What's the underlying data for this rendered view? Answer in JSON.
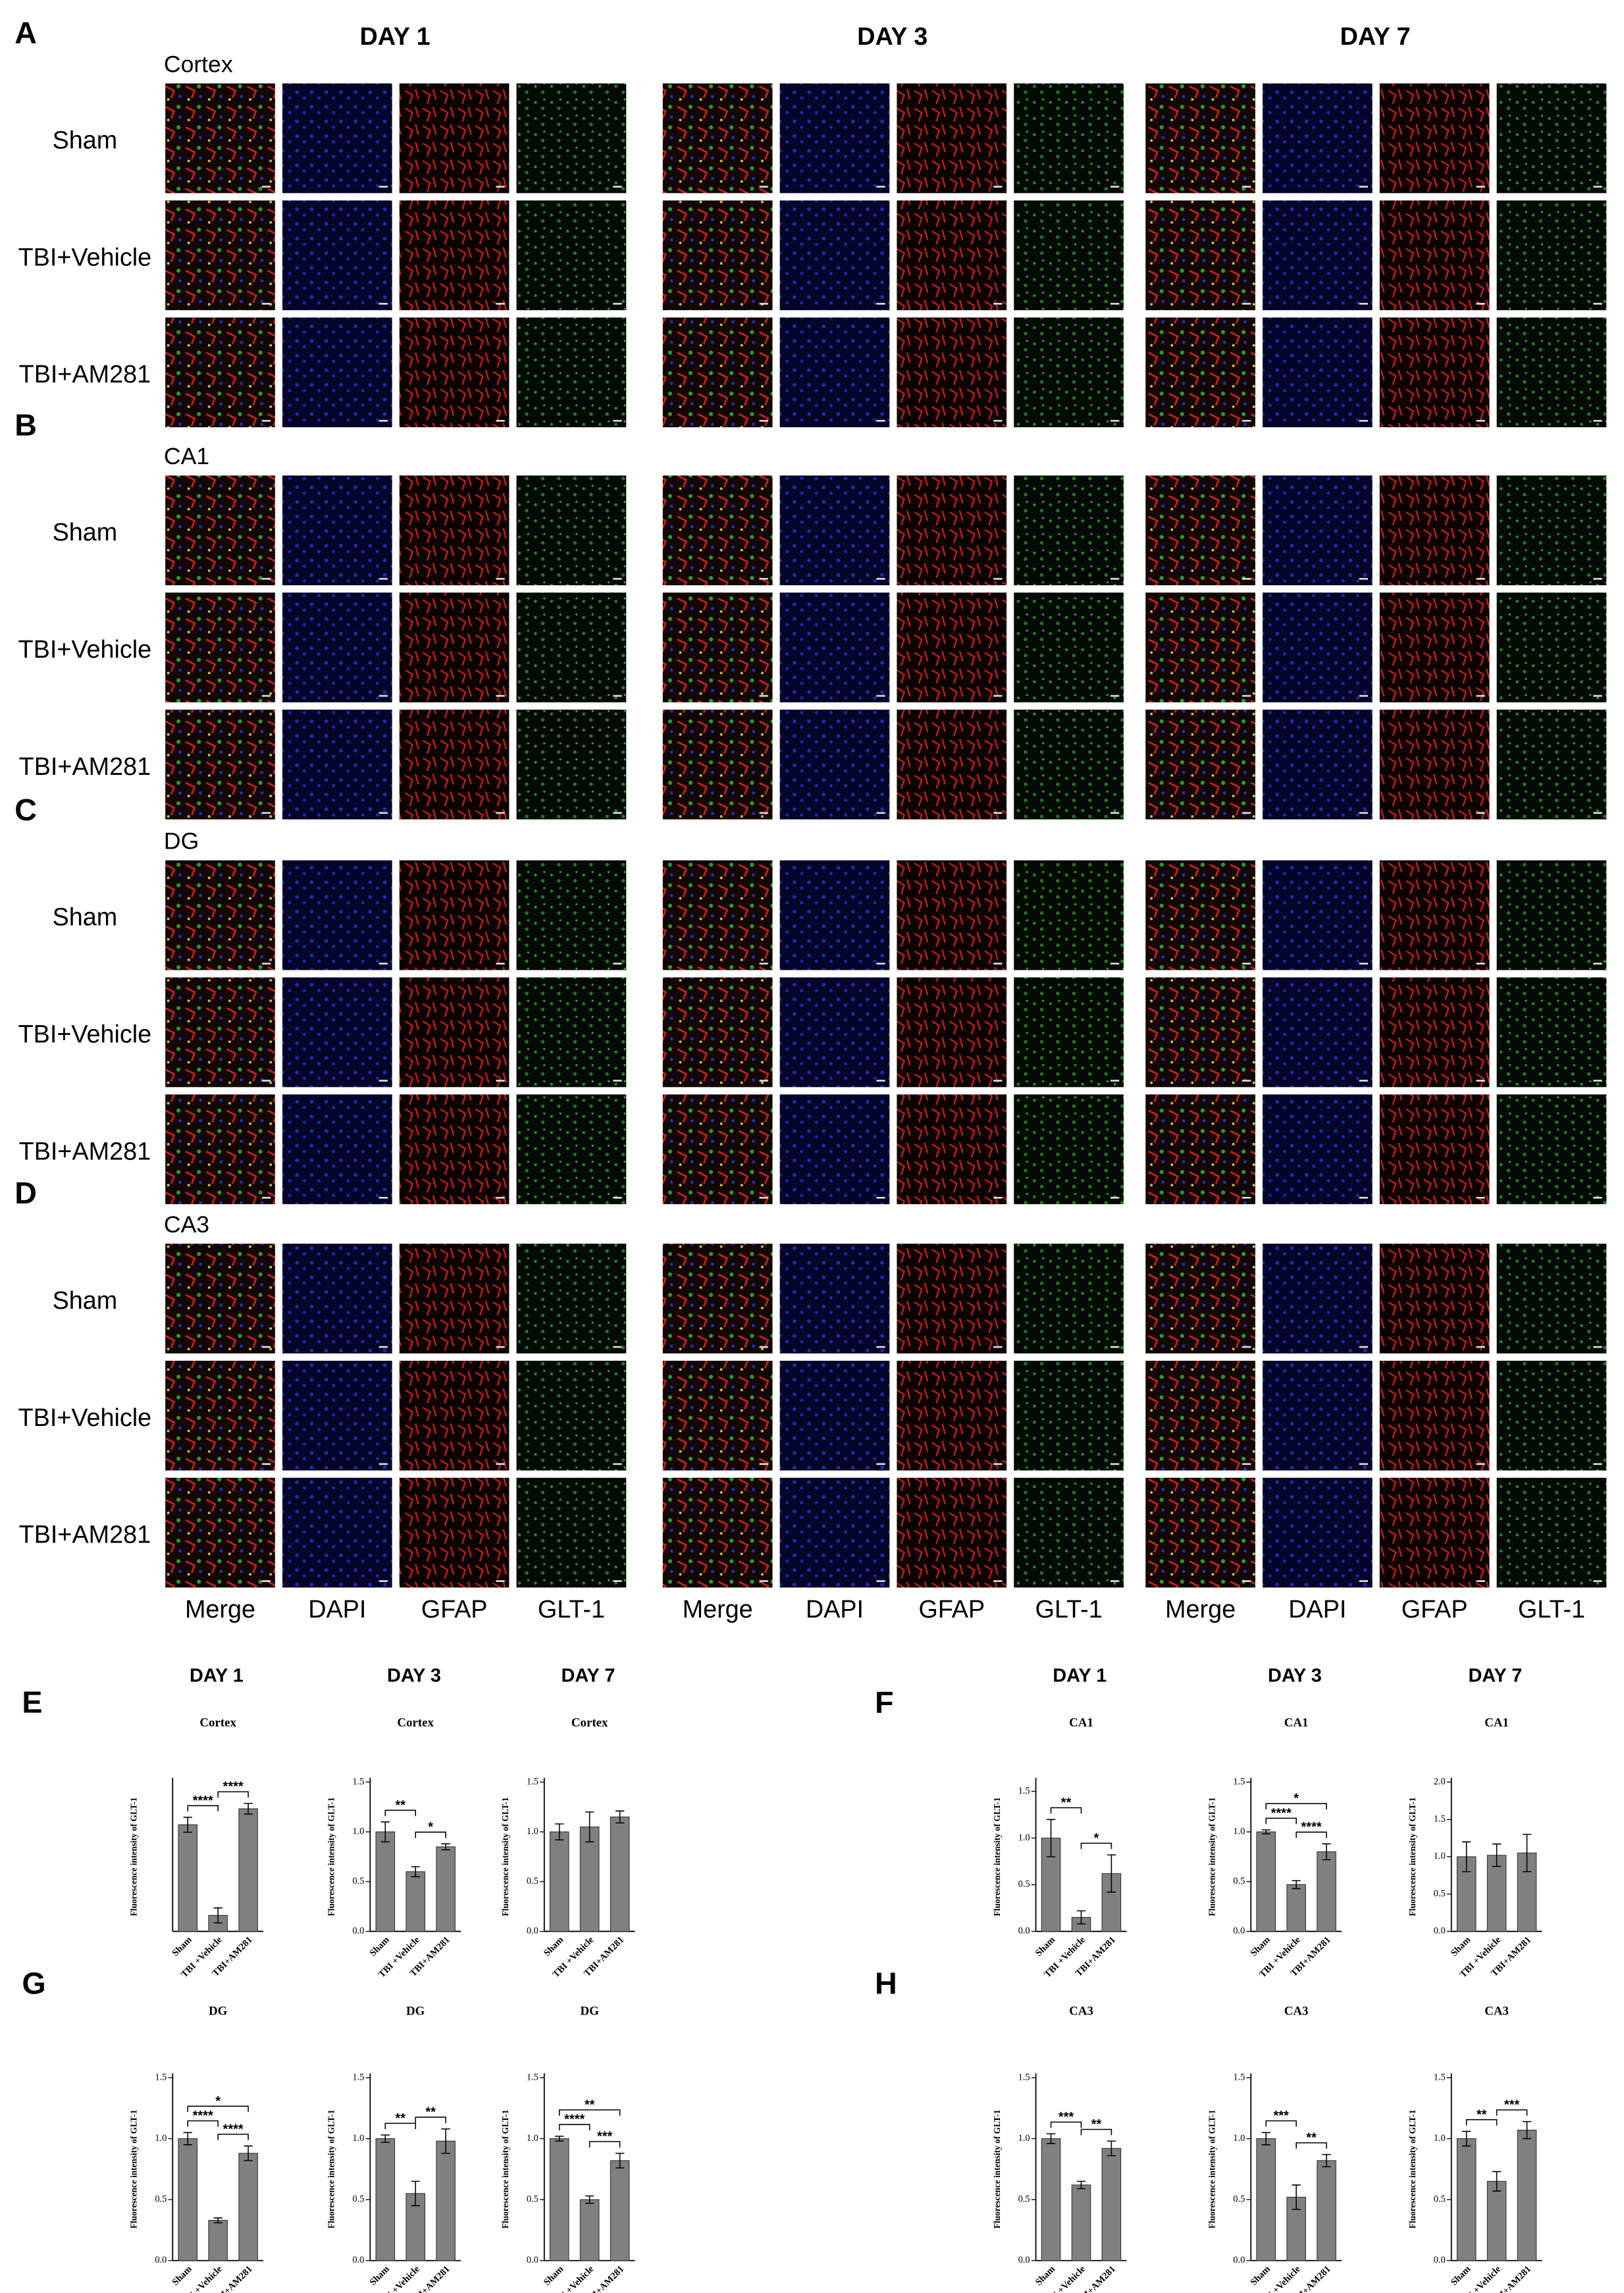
{
  "figure": {
    "image_panels": [
      {
        "letter": "A",
        "region": "Cortex"
      },
      {
        "letter": "B",
        "region": "CA1"
      },
      {
        "letter": "C",
        "region": "DG"
      },
      {
        "letter": "D",
        "region": "CA3"
      }
    ],
    "days": [
      "DAY 1",
      "DAY 3",
      "DAY 7"
    ],
    "groups": [
      "Sham",
      "TBI+Vehicle",
      "TBI+AM281"
    ],
    "channels": [
      "Merge",
      "DAPI",
      "GFAP",
      "GLT-1"
    ],
    "chart_panels": [
      "E",
      "F",
      "G",
      "H"
    ]
  },
  "chart_data": [
    {
      "type": "bar",
      "title": "Cortex",
      "ylabel": "Fluorescence intensity of GLT-1",
      "categories": [
        "Sham",
        "TBI +Vehicle",
        "TBI+AM281"
      ],
      "values": [
        1.0,
        0.15,
        1.15
      ],
      "errors": [
        0.07,
        0.07,
        0.05
      ],
      "color": "#808080",
      "ylim": [
        0,
        1.4
      ],
      "comparisons": [
        {
          "between": [
            0,
            1
          ],
          "label": "****"
        },
        {
          "between": [
            1,
            2
          ],
          "label": "****"
        }
      ]
    },
    {
      "type": "bar",
      "title": "Cortex",
      "ylabel": "Fluorescence intensity of GLT-1",
      "categories": [
        "Sham",
        "TBI +Vehicle",
        "TBI+AM281"
      ],
      "values": [
        1.0,
        0.6,
        0.85
      ],
      "errors": [
        0.1,
        0.05,
        0.03
      ],
      "color": "#808080",
      "ylim": [
        0,
        1.5
      ],
      "yticks": [
        {
          "value": 0,
          "label": "0.0"
        },
        {
          "value": 0.5,
          "label": "0.5"
        },
        {
          "value": 1,
          "label": "1.0"
        },
        {
          "value": 1.5,
          "label": "1.5"
        }
      ],
      "comparisons": [
        {
          "between": [
            0,
            1
          ],
          "label": "**"
        },
        {
          "between": [
            1,
            2
          ],
          "label": "*"
        }
      ]
    },
    {
      "type": "bar",
      "title": "Cortex",
      "ylabel": "Fluorescence intensity of GLT-1",
      "categories": [
        "Sham",
        "TBI +Vehicle",
        "TBI+AM281"
      ],
      "values": [
        1.0,
        1.05,
        1.15
      ],
      "errors": [
        0.08,
        0.15,
        0.06
      ],
      "color": "#808080",
      "ylim": [
        0,
        1.5
      ],
      "yticks": [
        {
          "value": 0,
          "label": "0.0"
        },
        {
          "value": 0.5,
          "label": "0.5"
        },
        {
          "value": 1,
          "label": "1.0"
        },
        {
          "value": 1.5,
          "label": "1.5"
        }
      ],
      "comparisons": []
    },
    {
      "type": "bar",
      "title": "CA1",
      "ylabel": "Fluorescence intensity of GLT-1",
      "categories": [
        "Sham",
        "TBI +Vehicle",
        "TBI+AM281"
      ],
      "values": [
        1.0,
        0.15,
        0.62
      ],
      "errors": [
        0.2,
        0.07,
        0.2
      ],
      "color": "#808080",
      "ylim": [
        0,
        1.6
      ],
      "yticks": [
        {
          "value": 0,
          "label": "0.0"
        },
        {
          "value": 0.5,
          "label": "0.5"
        },
        {
          "value": 1,
          "label": "1.0"
        },
        {
          "value": 1.5,
          "label": "1.5"
        }
      ],
      "comparisons": [
        {
          "between": [
            0,
            1
          ],
          "label": "**"
        },
        {
          "between": [
            1,
            2
          ],
          "label": "*"
        }
      ]
    },
    {
      "type": "bar",
      "title": "CA1",
      "ylabel": "Fluorescence intensity of GLT-1",
      "categories": [
        "Sham",
        "TBI +Vehicle",
        "TBI+AM281"
      ],
      "values": [
        1.0,
        0.47,
        0.8
      ],
      "errors": [
        0.02,
        0.04,
        0.08
      ],
      "color": "#808080",
      "ylim": [
        0,
        1.5
      ],
      "yticks": [
        {
          "value": 0,
          "label": "0.0"
        },
        {
          "value": 0.5,
          "label": "0.5"
        },
        {
          "value": 1,
          "label": "1.0"
        },
        {
          "value": 1.5,
          "label": "1.5"
        }
      ],
      "comparisons": [
        {
          "between": [
            0,
            1
          ],
          "label": "****"
        },
        {
          "between": [
            1,
            2
          ],
          "label": "****"
        },
        {
          "between": [
            0,
            2
          ],
          "label": "*"
        }
      ]
    },
    {
      "type": "bar",
      "title": "CA1",
      "ylabel": "Fluorescence intensity of GLT-1",
      "categories": [
        "Sham",
        "TBI +Vehicle",
        "TBI+AM281"
      ],
      "values": [
        1.0,
        1.02,
        1.05
      ],
      "errors": [
        0.2,
        0.15,
        0.25
      ],
      "color": "#808080",
      "ylim": [
        0,
        2.0
      ],
      "yticks": [
        {
          "value": 0,
          "label": "0.0"
        },
        {
          "value": 0.5,
          "label": "0.5"
        },
        {
          "value": 1,
          "label": "1.0"
        },
        {
          "value": 1.5,
          "label": "1.5"
        },
        {
          "value": 2,
          "label": "2.0"
        }
      ],
      "comparisons": []
    },
    {
      "type": "bar",
      "title": "DG",
      "ylabel": "Fluorescence intensity of GLT-1",
      "categories": [
        "Sham",
        "TBI +Vehicle",
        "TBI+AM281"
      ],
      "values": [
        1.0,
        0.33,
        0.88
      ],
      "errors": [
        0.05,
        0.02,
        0.06
      ],
      "color": "#808080",
      "ylim": [
        0,
        1.5
      ],
      "yticks": [
        {
          "value": 0,
          "label": "0.0"
        },
        {
          "value": 0.5,
          "label": "0.5"
        },
        {
          "value": 1,
          "label": "1.0"
        },
        {
          "value": 1.5,
          "label": "1.5"
        }
      ],
      "comparisons": [
        {
          "between": [
            0,
            1
          ],
          "label": "****"
        },
        {
          "between": [
            1,
            2
          ],
          "label": "****"
        },
        {
          "between": [
            0,
            2
          ],
          "label": "*"
        }
      ]
    },
    {
      "type": "bar",
      "title": "DG",
      "ylabel": "Fluorescence intensity of GLT-1",
      "categories": [
        "Sham",
        "TBI +Vehicle",
        "TBI+AM281"
      ],
      "values": [
        1.0,
        0.55,
        0.98
      ],
      "errors": [
        0.03,
        0.1,
        0.1
      ],
      "color": "#808080",
      "ylim": [
        0,
        1.5
      ],
      "yticks": [
        {
          "value": 0,
          "label": "0.0"
        },
        {
          "value": 0.5,
          "label": "0.5"
        },
        {
          "value": 1,
          "label": "1.0"
        },
        {
          "value": 1.5,
          "label": "1.5"
        }
      ],
      "comparisons": [
        {
          "between": [
            0,
            1
          ],
          "label": "**"
        },
        {
          "between": [
            1,
            2
          ],
          "label": "**"
        }
      ]
    },
    {
      "type": "bar",
      "title": "DG",
      "ylabel": "Fluorescence intensity of GLT-1",
      "categories": [
        "Sham",
        "TBI +Vehicle",
        "TBI+AM281"
      ],
      "values": [
        1.0,
        0.5,
        0.82
      ],
      "errors": [
        0.02,
        0.03,
        0.06
      ],
      "color": "#808080",
      "ylim": [
        0,
        1.5
      ],
      "yticks": [
        {
          "value": 0,
          "label": "0.0"
        },
        {
          "value": 0.5,
          "label": "0.5"
        },
        {
          "value": 1,
          "label": "1.0"
        },
        {
          "value": 1.5,
          "label": "1.5"
        }
      ],
      "comparisons": [
        {
          "between": [
            0,
            1
          ],
          "label": "****"
        },
        {
          "between": [
            1,
            2
          ],
          "label": "***"
        },
        {
          "between": [
            0,
            2
          ],
          "label": "**"
        }
      ]
    },
    {
      "type": "bar",
      "title": "CA3",
      "ylabel": "Fluorescence intensity of GLT-1",
      "categories": [
        "Sham",
        "TBI +Vehicle",
        "TBI+AM281"
      ],
      "values": [
        1.0,
        0.62,
        0.92
      ],
      "errors": [
        0.04,
        0.03,
        0.06
      ],
      "color": "#808080",
      "ylim": [
        0,
        1.5
      ],
      "yticks": [
        {
          "value": 0,
          "label": "0.0"
        },
        {
          "value": 0.5,
          "label": "0.5"
        },
        {
          "value": 1,
          "label": "1.0"
        },
        {
          "value": 1.5,
          "label": "1.5"
        }
      ],
      "comparisons": [
        {
          "between": [
            0,
            1
          ],
          "label": "***"
        },
        {
          "between": [
            1,
            2
          ],
          "label": "**"
        }
      ]
    },
    {
      "type": "bar",
      "title": "CA3",
      "ylabel": "Fluorescence intensity of GLT-1",
      "categories": [
        "Sham",
        "TBI +Vehicle",
        "TBI+AM281"
      ],
      "values": [
        1.0,
        0.52,
        0.82
      ],
      "errors": [
        0.05,
        0.1,
        0.05
      ],
      "color": "#808080",
      "ylim": [
        0,
        1.5
      ],
      "yticks": [
        {
          "value": 0,
          "label": "0.0"
        },
        {
          "value": 0.5,
          "label": "0.5"
        },
        {
          "value": 1,
          "label": "1.0"
        },
        {
          "value": 1.5,
          "label": "1.5"
        }
      ],
      "comparisons": [
        {
          "between": [
            0,
            1
          ],
          "label": "***"
        },
        {
          "between": [
            1,
            2
          ],
          "label": "**"
        }
      ]
    },
    {
      "type": "bar",
      "title": "CA3",
      "ylabel": "Fluorescence intensity of GLT-1",
      "categories": [
        "Sham",
        "TBI +Vehicle",
        "TBI+AM281"
      ],
      "values": [
        1.0,
        0.65,
        1.07
      ],
      "errors": [
        0.06,
        0.08,
        0.07
      ],
      "color": "#808080",
      "ylim": [
        0,
        1.5
      ],
      "yticks": [
        {
          "value": 0,
          "label": "0.0"
        },
        {
          "value": 0.5,
          "label": "0.5"
        },
        {
          "value": 1,
          "label": "1.0"
        },
        {
          "value": 1.5,
          "label": "1.5"
        }
      ],
      "comparisons": [
        {
          "between": [
            0,
            1
          ],
          "label": "**"
        },
        {
          "between": [
            1,
            2
          ],
          "label": "***"
        }
      ]
    }
  ]
}
